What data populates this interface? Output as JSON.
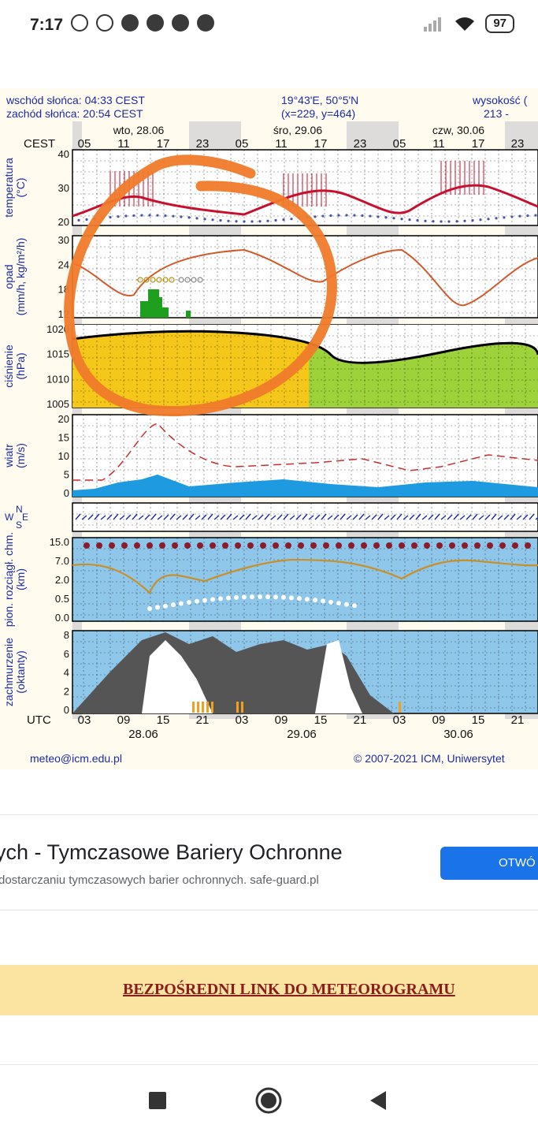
{
  "status": {
    "time": "7:17",
    "battery": "97"
  },
  "meteogram": {
    "sunrise": "wschód słońca: 04:33 CEST",
    "sunset": "zachód słońca: 20:54 CEST",
    "coords": "19°43'E, 50°5'N",
    "grid": "(x=229, y=464)",
    "altitude_label": "wysokość (",
    "altitude_value": "213 -",
    "tz_top": "CEST",
    "tz_bottom": "UTC",
    "days_top": [
      "wto, 28.06",
      "śro, 29.06",
      "czw, 30.06"
    ],
    "hours_top": [
      "05",
      "11",
      "17",
      "23",
      "05",
      "11",
      "17",
      "23",
      "05",
      "11",
      "17",
      "23"
    ],
    "hours_bottom": [
      "03",
      "09",
      "15",
      "21",
      "03",
      "09",
      "15",
      "21",
      "03",
      "09",
      "15",
      "21"
    ],
    "days_bottom": [
      "28.06",
      "29.06",
      "30.06"
    ],
    "panels": [
      {
        "label": [
          "temperatura",
          "(°C)"
        ],
        "ticks": [
          "40",
          "30",
          "20"
        ]
      },
      {
        "label": [
          "opad",
          "(mm/h, kg/m²/h)"
        ],
        "ticks": [
          "30",
          "24",
          "18",
          "12"
        ]
      },
      {
        "label": [
          "ciśnienie",
          "(hPa)"
        ],
        "ticks": [
          "1020",
          "1015",
          "1010",
          "1005"
        ]
      },
      {
        "label": [
          "wiatr",
          "(m/s)"
        ],
        "ticks": [
          "20",
          "15",
          "10",
          "5",
          "0"
        ]
      },
      {
        "label": [
          "W",
          "N",
          "S",
          "E"
        ],
        "ticks": []
      },
      {
        "label": [
          "pion. rozciągł. chm.",
          "(km)"
        ],
        "ticks": [
          "15.0",
          "7.0",
          "2.0",
          "0.5",
          "0.0"
        ]
      },
      {
        "label": [
          "zachmurzenie",
          "(oktanty)"
        ],
        "ticks": [
          "8",
          "6",
          "4",
          "2",
          "0"
        ]
      }
    ],
    "footer_left": "meteo@icm.edu.pl",
    "footer_right": "© 2007-2021 ICM, Uniwersytet"
  },
  "ad": {
    "title": "ych - Tymczasowe Bariery Ochronne",
    "description": "dostarczaniu tymczasowych barier ochronnych. safe-guard.pl",
    "button": "OTWÓ"
  },
  "link": {
    "label": "BEZPOŚREDNI LINK DO METEOROGRAMU"
  },
  "colors": {
    "accent": "#1a73e8",
    "link": "#8b1c1c",
    "annotation": "#f07a2a",
    "temp": "#c8102e"
  }
}
